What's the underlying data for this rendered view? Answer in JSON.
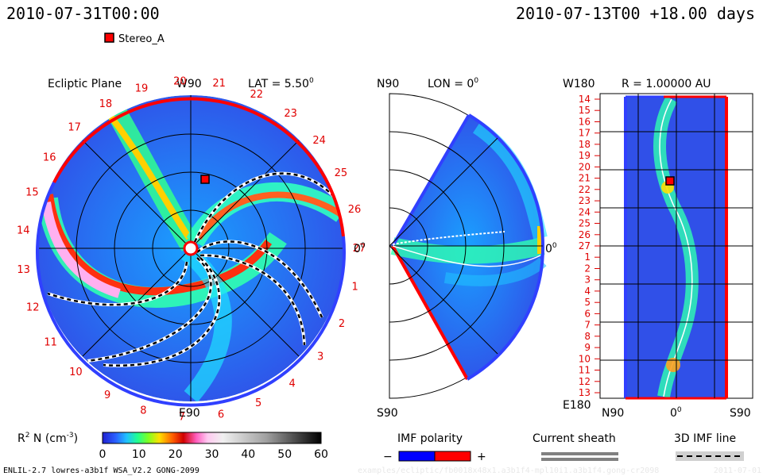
{
  "header": {
    "left_time": "2010-07-31T00:00",
    "right_time": "2010-07-13T00  +18.00 days"
  },
  "legend_stereo": {
    "label": "Stereo_A",
    "color": "#ff0000"
  },
  "panels": {
    "ecliptic": {
      "title": "Ecliptic Plane",
      "top_label": "W90",
      "lat_label": "LAT = 5.50",
      "lat_sup": "0",
      "bottom_label": "E90",
      "right_label": "0",
      "right_sup": "0",
      "ring_numbers": [
        "1",
        "2",
        "3",
        "4",
        "5",
        "6",
        "7",
        "8",
        "9",
        "10",
        "11",
        "12",
        "13",
        "14",
        "15",
        "16",
        "17",
        "18",
        "19",
        "20",
        "21",
        "22",
        "23",
        "24",
        "25",
        "26",
        "27"
      ]
    },
    "meridional": {
      "top_label": "N90",
      "lon_label": "LON = 0",
      "lon_sup": "0",
      "bottom_label": "S90",
      "right_label": "0",
      "right_sup": "0"
    },
    "radial": {
      "top_left_label": "W180",
      "r_label": "R = 1.00000 AU",
      "bottom_left_label": "E180",
      "x_labels": [
        "N90",
        "0",
        "S90"
      ],
      "x_label_sup": "0",
      "y_labels": [
        "14",
        "15",
        "16",
        "17",
        "18",
        "19",
        "20",
        "21",
        "22",
        "23",
        "24",
        "25",
        "26",
        "27",
        "1",
        "2",
        "3",
        "4",
        "5",
        "6",
        "7",
        "8",
        "9",
        "10",
        "11",
        "12",
        "13"
      ]
    }
  },
  "colorbar": {
    "label": "R",
    "label_sup": "2",
    "label_rest": " N (cm",
    "label_sup2": "-3",
    "label_end": ")",
    "ticks": [
      "0",
      "10",
      "20",
      "30",
      "40",
      "50",
      "60"
    ]
  },
  "legends": {
    "imf_polarity": {
      "title": "IMF polarity",
      "minus": "−",
      "plus": "+",
      "neg_color": "#0000ff",
      "pos_color": "#ff0000"
    },
    "current_sheath": {
      "title": "Current sheath"
    },
    "imf_line": {
      "title": "3D IMF line"
    }
  },
  "footer": {
    "model": "ENLIL-2.7 lowres-a3b1f WSA_V2.2 GONG-2099",
    "path": "examples/ecliptic/fb0018x48x1.a3b1f4-mpl10i1.a3b1f4.gong-cr2098",
    "date": "2011-07-01"
  },
  "chart_data": {
    "type": "heatmap",
    "variable": "R^2 N (cm^-3)",
    "colorbar_range": [
      0,
      60
    ],
    "radial_distance_au": 1.0,
    "latitude_deg": 5.5,
    "longitude_deg": 0,
    "elapsed_days": 18.0,
    "spacecraft": [
      "Stereo_A"
    ]
  }
}
